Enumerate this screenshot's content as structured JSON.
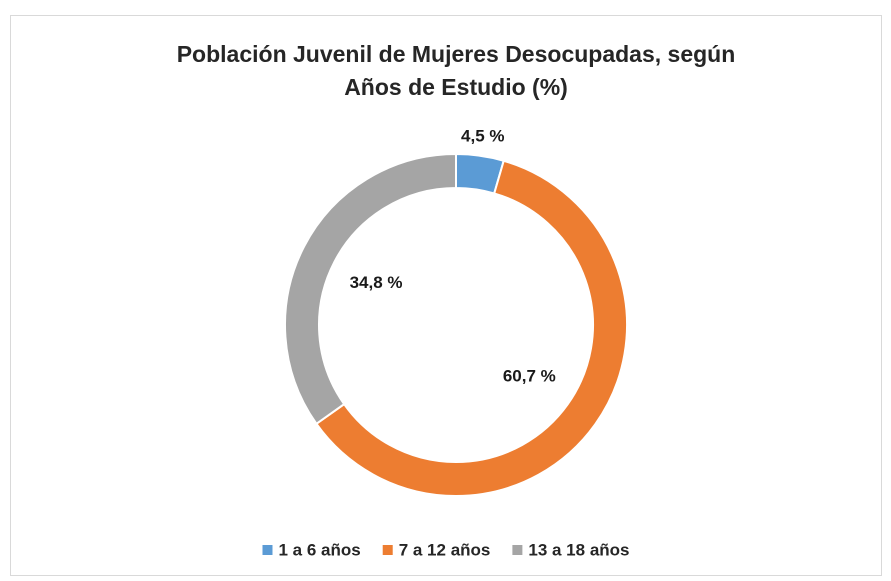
{
  "chart_data": {
    "type": "donut",
    "title": "Población Juvenil de Mujeres Desocupadas, según Años de Estudio (%)",
    "categories": [
      "1 a 6 años",
      "7 a 12 años",
      "13 a 18 años"
    ],
    "values": [
      4.5,
      60.7,
      34.8
    ],
    "value_labels": [
      "4,5 %",
      "60,7 %",
      "34,8 %"
    ],
    "colors": [
      "#5b9bd5",
      "#ed7d31",
      "#a5a5a5"
    ],
    "legend": "bottom"
  }
}
